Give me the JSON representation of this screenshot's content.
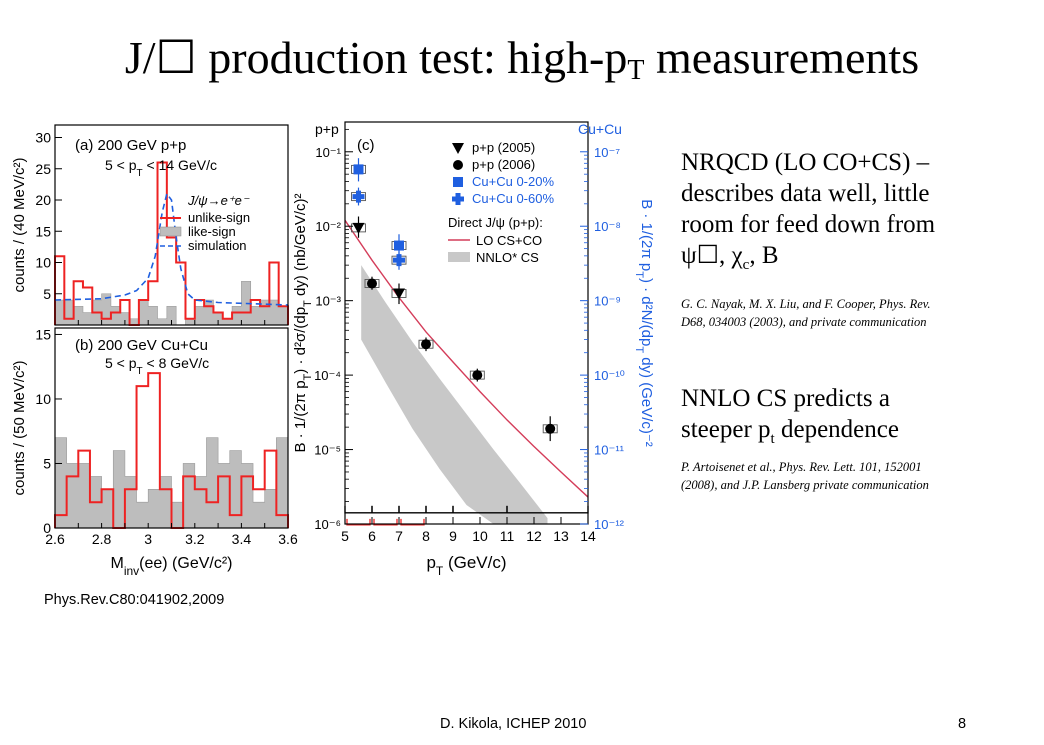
{
  "slide": {
    "title_prefix": "J/☐ production test: high-p",
    "title_sub": "T",
    "title_suffix": " measurements",
    "notes": {
      "nrqcd_lines": [
        "NRQCD (LO CO+CS) –",
        "describes data well, little",
        "room for feed down from"
      ],
      "nrqcd_feed_psi": "ψ☐, χ",
      "nrqcd_feed_c": "c",
      "nrqcd_feed_b": ", B",
      "nrqcd_ref_lines": [
        "G. C. Nayak, M. X. Liu, and F. Cooper, Phys. Rev.",
        "D68, 034003 (2003), and private communication"
      ],
      "nnlo_line1": "NNLO CS predicts a",
      "nnlo_line2_prefix": "steeper p",
      "nnlo_line2_sub": "t",
      "nnlo_line2_suffix": " dependence",
      "nnlo_ref_lines": [
        "P. Artoisenet et al., Phys. Rev. Lett. 101, 152001",
        "(2008), and J.P. Lansberg private communication"
      ]
    },
    "citation": "Phys.Rev.C80:041902,2009",
    "footer_center": "D. Kikola, ICHEP 2010",
    "page_number": "8"
  },
  "colors": {
    "red": "#ee2222",
    "blue": "#1f5fe0",
    "gray": "#bdbdbd",
    "band": "#c8c8c8",
    "curve": "#d43d5a"
  },
  "chart_data": [
    {
      "type": "histogram",
      "panel_label": "(a) 200 GeV p+p",
      "subtitle": "5 < p_T < 14 GeV/c",
      "ylabel": "counts / (40 MeV/c²)",
      "xlim": [
        2.6,
        3.6
      ],
      "ylim": [
        0,
        32
      ],
      "yticks": [
        5,
        10,
        15,
        20,
        25,
        30
      ],
      "legend": {
        "title": "J/ψ→e⁺e⁻",
        "entries": [
          "unlike-sign",
          "like-sign",
          "simulation"
        ]
      },
      "bin_edges": [
        2.6,
        2.64,
        2.68,
        2.72,
        2.76,
        2.8,
        2.84,
        2.88,
        2.92,
        2.96,
        3.0,
        3.04,
        3.08,
        3.12,
        3.16,
        3.2,
        3.24,
        3.28,
        3.32,
        3.36,
        3.4,
        3.44,
        3.48,
        3.52,
        3.56,
        3.6
      ],
      "series": [
        {
          "name": "unlike-sign",
          "values": [
            11,
            1,
            7,
            6,
            2,
            1,
            2,
            4,
            0,
            4,
            7,
            26,
            14,
            10,
            1,
            4,
            3,
            2,
            1,
            2,
            2,
            4,
            3,
            10,
            3
          ]
        },
        {
          "name": "like-sign",
          "values": [
            4,
            4,
            3,
            2,
            4,
            5,
            3,
            2,
            1,
            4,
            3,
            1,
            3,
            0,
            1,
            3,
            4,
            2,
            1,
            3,
            7,
            3,
            4,
            4,
            3
          ]
        }
      ],
      "simulation": {
        "x": [
          2.6,
          2.8,
          2.9,
          2.95,
          3.0,
          3.03,
          3.06,
          3.08,
          3.1,
          3.12,
          3.14,
          3.17,
          3.2,
          3.3,
          3.6
        ],
        "y": [
          4,
          4.2,
          4.8,
          5.5,
          7.5,
          11,
          18,
          21,
          20,
          14,
          9,
          5,
          4,
          3.6,
          3.2
        ]
      }
    },
    {
      "type": "histogram",
      "panel_label": "(b) 200 GeV Cu+Cu",
      "subtitle": "5 < p_T < 8 GeV/c",
      "ylabel": "counts / (50 MeV/c²)",
      "xlabel": "M_inv(ee) (GeV/c²)",
      "xlim": [
        2.6,
        3.6
      ],
      "ylim": [
        0,
        15.5
      ],
      "yticks": [
        0,
        5,
        10,
        15
      ],
      "xticks": [
        2.6,
        2.8,
        3.0,
        3.2,
        3.4,
        3.6
      ],
      "xtick_labels": [
        "2.6",
        "2.8",
        "3",
        "3.2",
        "3.4",
        "3.6"
      ],
      "bin_edges": [
        2.6,
        2.65,
        2.7,
        2.75,
        2.8,
        2.85,
        2.9,
        2.95,
        3.0,
        3.05,
        3.1,
        3.15,
        3.2,
        3.25,
        3.3,
        3.35,
        3.4,
        3.45,
        3.5,
        3.55,
        3.6
      ],
      "series": [
        {
          "name": "unlike-sign",
          "values": [
            1,
            4,
            6,
            2,
            3,
            0,
            3,
            11,
            12,
            3,
            0,
            4,
            3,
            2,
            4,
            1,
            4,
            3,
            6,
            1
          ]
        },
        {
          "name": "like-sign",
          "values": [
            7,
            5,
            5,
            4,
            3,
            6,
            4,
            2,
            3,
            4,
            2,
            5,
            4,
            7,
            5,
            6,
            5,
            2,
            3,
            7
          ]
        }
      ]
    },
    {
      "type": "scatter",
      "panel_label": "(c)",
      "corner_left": "p+p",
      "corner_right": "Cu+Cu",
      "xlabel": "p_T (GeV/c)",
      "ylabel": "B · 1/(2π p_T) · d²σ/(dp_T dy)  (nb/GeV/c)²",
      "ylabel_right": "B · 1/(2π p_T) · d²N/(dp_T dy)  (GeV/c)⁻²",
      "xlim": [
        5,
        14
      ],
      "xticks": [
        5,
        6,
        7,
        8,
        9,
        10,
        11,
        12,
        13,
        14
      ],
      "ylim_log10": [
        -6,
        -0.6
      ],
      "yticks_left": [
        "10⁻¹",
        "10⁻²",
        "10⁻³",
        "10⁻⁴",
        "10⁻⁵",
        "10⁻⁶"
      ],
      "yticks_right": [
        "10⁻⁷",
        "10⁻⁸",
        "10⁻⁹",
        "10⁻¹⁰",
        "10⁻¹¹",
        "10⁻¹²"
      ],
      "legend": {
        "entries": [
          "p+p (2005)",
          "p+p (2006)",
          "Cu+Cu 0-20%",
          "Cu+Cu 0-60%"
        ],
        "direct_title": "Direct J/ψ (p+p):",
        "curves": [
          "LO CS+CO",
          "NNLO* CS"
        ]
      },
      "series": [
        {
          "name": "p+p (2005)",
          "marker": "triangle-down",
          "x": [
            5.5,
            7.0
          ],
          "y": [
            0.0095,
            0.00125
          ],
          "err_hi": [
            0.0135,
            0.0017
          ],
          "err_lo": [
            0.007,
            0.0009
          ]
        },
        {
          "name": "p+p (2006)",
          "marker": "circle",
          "x": [
            6.0,
            8.0,
            9.9,
            12.6
          ],
          "y": [
            0.0017,
            0.00026,
            0.0001,
            1.9e-05
          ],
          "err_hi": [
            0.0021,
            0.00032,
            0.000122,
            2.8e-05
          ],
          "err_lo": [
            0.0014,
            0.00021,
            8.2e-05,
            1.3e-05
          ]
        },
        {
          "name": "Cu+Cu 0-20%",
          "marker": "square",
          "x": [
            5.5,
            7.0
          ],
          "y": [
            0.058,
            0.0055
          ],
          "err_hi": [
            0.082,
            0.0078
          ],
          "err_lo": [
            0.04,
            0.0039
          ]
        },
        {
          "name": "Cu+Cu 0-60%",
          "marker": "plus",
          "x": [
            5.5,
            7.0
          ],
          "y": [
            0.025,
            0.0035
          ],
          "err_hi": [
            0.033,
            0.0046
          ],
          "err_lo": [
            0.019,
            0.0026
          ]
        }
      ],
      "lo_cs_co_curve": {
        "x": [
          5,
          6,
          7,
          8,
          9,
          10,
          11,
          12,
          13,
          14
        ],
        "y": [
          0.012,
          0.0035,
          0.0011,
          0.00038,
          0.00015,
          6e-05,
          2.5e-05,
          1.1e-05,
          5e-06,
          2.3e-06
        ]
      },
      "nnlo_cs_band": {
        "x": [
          5.6,
          6.5,
          7.5,
          8.5,
          9.5,
          10.5,
          11.5,
          12.5
        ],
        "upper": [
          0.003,
          0.00095,
          0.00028,
          9e-05,
          3e-05,
          1e-05,
          3.5e-06,
          1.2e-06
        ],
        "lower": [
          0.0003,
          8e-05,
          1.9e-05,
          5.5e-06,
          1.8e-06,
          7e-07,
          3e-07,
          1.2e-07
        ]
      },
      "bin_brackets": {
        "black": [
          [
            5,
            6
          ],
          [
            6,
            7
          ],
          [
            7,
            8
          ],
          [
            8,
            9
          ],
          [
            9,
            11
          ],
          [
            11,
            14
          ]
        ],
        "red": [
          [
            5,
            6
          ],
          [
            6,
            7
          ],
          [
            7,
            8
          ]
        ]
      }
    }
  ]
}
